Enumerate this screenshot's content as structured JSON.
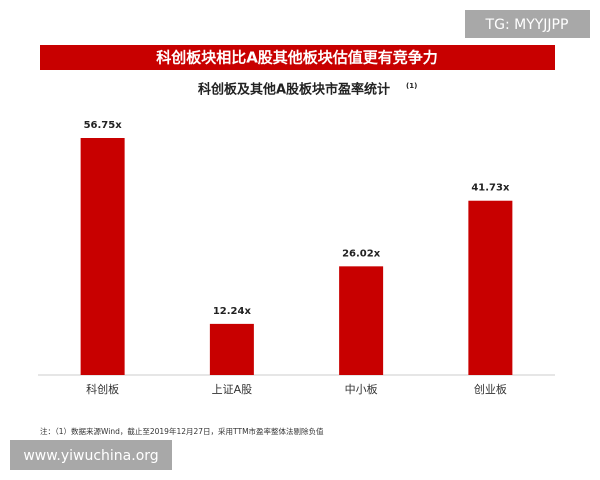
{
  "banner": "科创板块相比A股其他板块估值更有竞争力",
  "watermarks": {
    "top": "TG: MYYJJPP",
    "bottom": "www.yiwuchina.org"
  },
  "chart_data": {
    "type": "bar",
    "title": "科创板及其他A股板块市盈率统计",
    "title_note": "(1)",
    "categories": [
      "科创板",
      "上证A股",
      "中小板",
      "创业板"
    ],
    "values": [
      56.75,
      12.24,
      26.02,
      41.73
    ],
    "value_labels": [
      "56.75x",
      "12.24x",
      "26.02x",
      "41.73x"
    ],
    "color": "#c80000"
  },
  "footnote": "注：（1）数据来源Wind，截止至2019年12月27日，采用TTM市盈率整体法剔除负值"
}
